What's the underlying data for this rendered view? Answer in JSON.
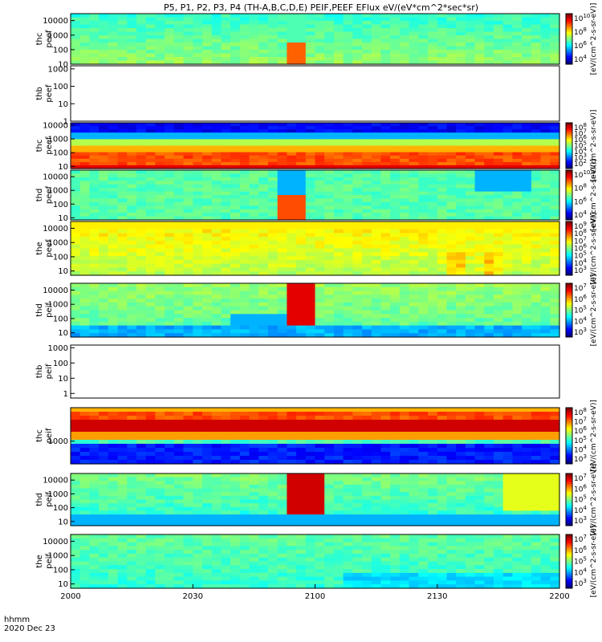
{
  "title": "P5, P1, P2, P3, P4 (TH-A,B,C,D,E) PEIF,PEEF EFlux eV/(eV*cm^2*sec*sr)",
  "footer": {
    "time_label": "hhmm",
    "date_label": "2020 Dec 23"
  },
  "chart_data": {
    "type": "heatmap",
    "x_ticks": [
      "2000",
      "2030",
      "2100",
      "2130",
      "2200"
    ],
    "panels": [
      {
        "id": "thc_peef_top",
        "label": "thc peef",
        "ylim": [
          10,
          30000
        ],
        "y_ticks": [
          "10000",
          "1000",
          "100",
          "10"
        ],
        "has_data": true,
        "colorbar": {
          "ticks": [
            "10^10",
            "10^8",
            "10^6",
            "10^4"
          ],
          "unit": "[eV/(cm^2-s-sr-eV)]"
        }
      },
      {
        "id": "thb_peef",
        "label": "thb peef",
        "ylim": [
          1,
          1500
        ],
        "y_ticks": [
          "1000",
          "100",
          "10",
          "1"
        ],
        "has_data": false
      },
      {
        "id": "thc_peef",
        "label": "thc peef",
        "ylim": [
          7,
          15000
        ],
        "y_ticks": [
          "10000",
          "1000",
          "100",
          "10"
        ],
        "has_data": true,
        "colorbar": {
          "ticks": [
            "10^8",
            "10^7",
            "10^6",
            "10^5",
            "10^4",
            "10^3",
            "10^2"
          ],
          "unit": "[eV/(cm^2-s-sr-eV)]"
        }
      },
      {
        "id": "thd_peef",
        "label": "thd peef",
        "ylim": [
          7,
          30000
        ],
        "y_ticks": [
          "10000",
          "1000",
          "100",
          "10"
        ],
        "has_data": true,
        "colorbar": {
          "ticks": [
            "10^10",
            "10^8",
            "10^6",
            "10^4"
          ],
          "unit": "[eV/(cm^2-s-sr-eV)]"
        }
      },
      {
        "id": "the_peef",
        "label": "the peef",
        "ylim": [
          5,
          30000
        ],
        "y_ticks": [
          "10000",
          "1000",
          "100",
          "10"
        ],
        "has_data": true,
        "colorbar": {
          "ticks": [
            "10^9",
            "10^8",
            "10^7",
            "10^6",
            "10^5",
            "10^4",
            "10^3"
          ],
          "unit": "[eV/(cm^2-s-sr-eV)]"
        }
      },
      {
        "id": "thd_peif_a",
        "label": "thd peif",
        "ylim": [
          5,
          30000
        ],
        "y_ticks": [
          "10000",
          "1000",
          "100",
          "10"
        ],
        "has_data": true,
        "colorbar": {
          "ticks": [
            "10^7",
            "10^6",
            "10^5",
            "10^4",
            "10^3"
          ],
          "unit": "[eV/(cm^2-s-sr-eV)]"
        }
      },
      {
        "id": "thb_peif",
        "label": "thb peif",
        "ylim": [
          0.5,
          1500
        ],
        "y_ticks": [
          "1000",
          "100",
          "10",
          "1"
        ],
        "has_data": false
      },
      {
        "id": "thc_peif",
        "label": "thc peif",
        "ylim": [
          100,
          30000
        ],
        "y_ticks": [
          "1000"
        ],
        "has_data": true,
        "colorbar": {
          "ticks": [
            "10^8",
            "10^7",
            "10^6",
            "10^5",
            "10^4",
            "10^3"
          ],
          "unit": "[eV/(cm^2-s-sr-eV)]"
        }
      },
      {
        "id": "thd_peif",
        "label": "thd peif",
        "ylim": [
          5,
          30000
        ],
        "y_ticks": [
          "10000",
          "1000",
          "100",
          "10"
        ],
        "has_data": true,
        "colorbar": {
          "ticks": [
            "10^7",
            "10^6",
            "10^5",
            "10^4",
            "10^3"
          ],
          "unit": "[eV/(cm^2-s-sr-eV)]"
        }
      },
      {
        "id": "the_peif",
        "label": "the peif",
        "ylim": [
          5,
          30000
        ],
        "y_ticks": [
          "10000",
          "1000",
          "100",
          "10"
        ],
        "has_data": true,
        "colorbar": {
          "ticks": [
            "10^7",
            "10^6",
            "10^5",
            "10^4",
            "10^3"
          ],
          "unit": "[eV/(cm^2-s-sr-eV)]"
        }
      }
    ]
  }
}
